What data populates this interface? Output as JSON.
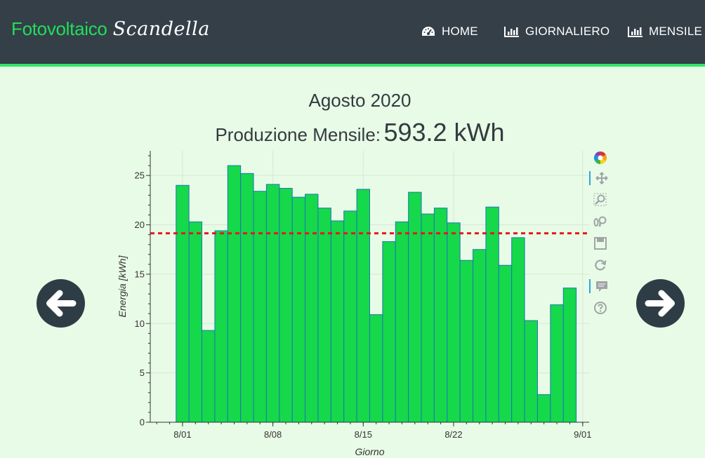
{
  "navbar": {
    "brand_main": "Fotovoltaico",
    "brand_script": "Scandella",
    "links": [
      {
        "label": "HOME",
        "icon": "dashboard-icon"
      },
      {
        "label": "GIORNALIERO",
        "icon": "bar-chart-icon"
      },
      {
        "label": "MENSILE",
        "icon": "bar-chart-icon"
      }
    ]
  },
  "header": {
    "title": "Agosto 2020",
    "production_label": "Produzione Mensile:",
    "production_value": "593.2 kWh"
  },
  "colors": {
    "navbar_bg": "#343f48",
    "accent": "#22dd5c",
    "page_bg": "#e8fbe6",
    "bar_fill": "#15d84b",
    "bar_stroke": "#1f77b4",
    "mean_line": "#e31a1c"
  },
  "toolbar": {
    "tools": [
      "bokeh-logo-icon",
      "pan-icon",
      "box-zoom-icon",
      "wheel-zoom-icon",
      "save-icon",
      "reset-icon",
      "hover-icon",
      "help-icon"
    ]
  },
  "nav_arrows": {
    "prev": "arrow-left-icon",
    "next": "arrow-right-icon"
  },
  "chart_data": {
    "type": "bar",
    "x": [
      "2020-08-01",
      "2020-08-02",
      "2020-08-03",
      "2020-08-04",
      "2020-08-05",
      "2020-08-06",
      "2020-08-07",
      "2020-08-08",
      "2020-08-09",
      "2020-08-10",
      "2020-08-11",
      "2020-08-12",
      "2020-08-13",
      "2020-08-14",
      "2020-08-15",
      "2020-08-16",
      "2020-08-17",
      "2020-08-18",
      "2020-08-19",
      "2020-08-20",
      "2020-08-21",
      "2020-08-22",
      "2020-08-23",
      "2020-08-24",
      "2020-08-25",
      "2020-08-26",
      "2020-08-27",
      "2020-08-28",
      "2020-08-29",
      "2020-08-30",
      "2020-08-31"
    ],
    "values": [
      24.0,
      20.3,
      9.3,
      19.4,
      26.0,
      25.2,
      23.4,
      24.1,
      23.7,
      22.8,
      23.1,
      21.7,
      20.4,
      21.4,
      23.6,
      10.9,
      18.3,
      20.3,
      23.3,
      21.1,
      21.7,
      20.2,
      16.4,
      17.5,
      21.8,
      15.9,
      18.7,
      10.3,
      2.8,
      11.9,
      13.6
    ],
    "mean": 19.14,
    "xlabel": "Giorno",
    "ylabel": "Energia [kWh]",
    "ylim": [
      0,
      27.5
    ],
    "yticks": [
      0,
      5,
      10,
      15,
      20,
      25
    ],
    "xticks": [
      {
        "date": "2020-08-01",
        "label": "8/01"
      },
      {
        "date": "2020-08-08",
        "label": "8/08"
      },
      {
        "date": "2020-08-15",
        "label": "8/15"
      },
      {
        "date": "2020-08-22",
        "label": "8/22"
      },
      {
        "date": "2020-09-01",
        "label": "9/01"
      }
    ],
    "xlim": [
      "2020-07-29T12:00",
      "2020-09-01T12:00"
    ],
    "grid": true
  }
}
